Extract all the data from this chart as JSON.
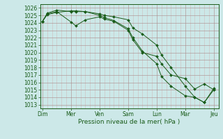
{
  "background_color": "#cce8e8",
  "grid_color_minor": "#ddbbbb",
  "grid_color_major": "#bbaaaa",
  "line_color": "#1a5c1a",
  "marker_color": "#1a5c1a",
  "xlabel": "Pression niveau de la mer( hPa )",
  "xlabel_days": [
    "Dim",
    "Mer",
    "Ven",
    "Sam",
    "Lun",
    "Mar",
    "Jeu"
  ],
  "x_tick_positions": [
    0,
    6,
    12,
    18,
    24,
    30,
    36
  ],
  "xlim": [
    -0.5,
    37
  ],
  "ylim": [
    1012.5,
    1026.5
  ],
  "yticks": [
    1013,
    1014,
    1015,
    1016,
    1017,
    1018,
    1019,
    1020,
    1021,
    1022,
    1023,
    1024,
    1025,
    1026
  ],
  "series1": {
    "x": [
      0,
      1,
      3,
      6,
      7,
      9,
      12,
      13,
      15,
      18,
      19,
      21,
      24,
      25,
      27,
      30,
      32,
      34,
      36
    ],
    "y": [
      1024.2,
      1025.2,
      1025.5,
      1024.1,
      1023.6,
      1024.4,
      1024.8,
      1024.5,
      1024.2,
      1023.0,
      1021.7,
      1020.0,
      1019.5,
      1018.5,
      1017.0,
      1016.5,
      1015.1,
      1015.8,
      1015.0
    ]
  },
  "series2": {
    "x": [
      0,
      1,
      3,
      6,
      7,
      9,
      12,
      13,
      15,
      18,
      19,
      21,
      24,
      25,
      27,
      30,
      32,
      34,
      36
    ],
    "y": [
      1024.2,
      1025.3,
      1025.7,
      1025.5,
      1025.5,
      1025.5,
      1025.2,
      1025.0,
      1024.8,
      1024.4,
      1023.3,
      1022.5,
      1021.0,
      1019.7,
      1018.0,
      1015.5,
      1014.0,
      1013.3,
      1015.0
    ]
  },
  "series3": {
    "x": [
      0,
      1,
      3,
      6,
      7,
      9,
      12,
      13,
      15,
      18,
      19,
      21,
      24,
      25,
      27,
      30,
      32,
      34,
      36
    ],
    "y": [
      1024.2,
      1025.1,
      1025.4,
      1025.6,
      1025.6,
      1025.5,
      1025.0,
      1024.7,
      1024.3,
      1023.2,
      1022.0,
      1020.2,
      1018.5,
      1016.8,
      1015.5,
      1014.2,
      1014.0,
      1013.3,
      1015.2
    ]
  }
}
